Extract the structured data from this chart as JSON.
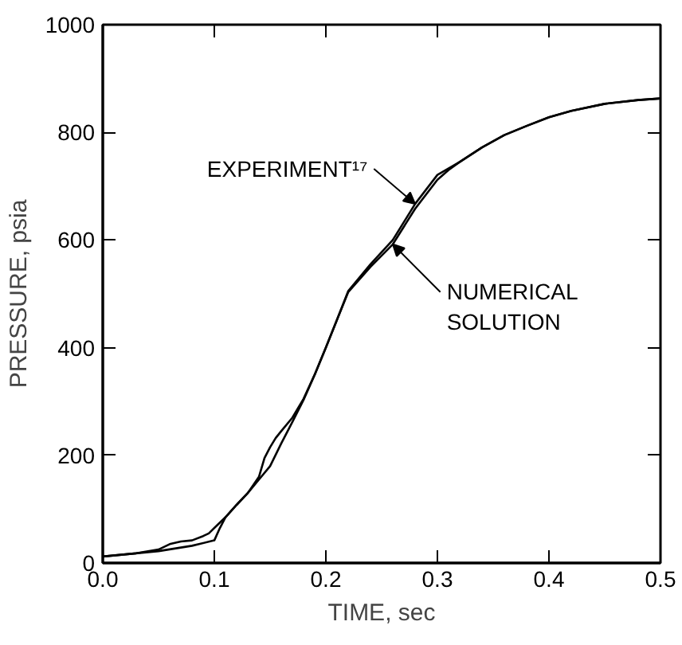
{
  "chart_data": {
    "type": "line",
    "xlabel": "TIME, sec",
    "ylabel": "PRESSURE, psia",
    "xlim": [
      0,
      0.5
    ],
    "ylim": [
      0,
      1000
    ],
    "xticks": [
      {
        "value": 0,
        "label": "0.0"
      },
      {
        "value": 0.1,
        "label": "0.1"
      },
      {
        "value": 0.2,
        "label": "0.2"
      },
      {
        "value": 0.3,
        "label": "0.3"
      },
      {
        "value": 0.4,
        "label": "0.4"
      },
      {
        "value": 0.5,
        "label": "0.5"
      }
    ],
    "yticks": [
      0,
      200,
      400,
      600,
      800,
      1000
    ],
    "grid": false,
    "marker": "none",
    "line_style": "solid",
    "series": [
      {
        "name": "EXPERIMENT¹⁷",
        "color": "#000000",
        "x": [
          0,
          0.03,
          0.05,
          0.06,
          0.07,
          0.08,
          0.09,
          0.095,
          0.1,
          0.11,
          0.12,
          0.13,
          0.14,
          0.15,
          0.16,
          0.17,
          0.18,
          0.19,
          0.2,
          0.21,
          0.22,
          0.24,
          0.26,
          0.28,
          0.3,
          0.32,
          0.34,
          0.36,
          0.38,
          0.4,
          0.42,
          0.45,
          0.48,
          0.5
        ],
        "values": [
          12,
          18,
          25,
          35,
          40,
          42,
          50,
          55,
          65,
          85,
          108,
          130,
          155,
          180,
          222,
          262,
          303,
          350,
          400,
          452,
          505,
          555,
          600,
          667,
          721,
          745,
          772,
          795,
          812,
          828,
          840,
          853,
          860,
          863
        ]
      },
      {
        "name": "NUMERICAL SOLUTION",
        "color": "#000000",
        "x": [
          0,
          0.05,
          0.08,
          0.1,
          0.105,
          0.11,
          0.12,
          0.13,
          0.14,
          0.145,
          0.15,
          0.155,
          0.16,
          0.17,
          0.18,
          0.19,
          0.2,
          0.21,
          0.22,
          0.24,
          0.26,
          0.28,
          0.3,
          0.31,
          0.32,
          0.34,
          0.36,
          0.38,
          0.4,
          0.42,
          0.45,
          0.48,
          0.5
        ],
        "values": [
          12,
          22,
          32,
          42,
          65,
          85,
          108,
          130,
          160,
          195,
          215,
          232,
          245,
          270,
          305,
          350,
          400,
          452,
          503,
          550,
          592,
          658,
          712,
          730,
          745,
          772,
          795,
          812,
          828,
          840,
          853,
          860,
          863
        ]
      }
    ]
  }
}
